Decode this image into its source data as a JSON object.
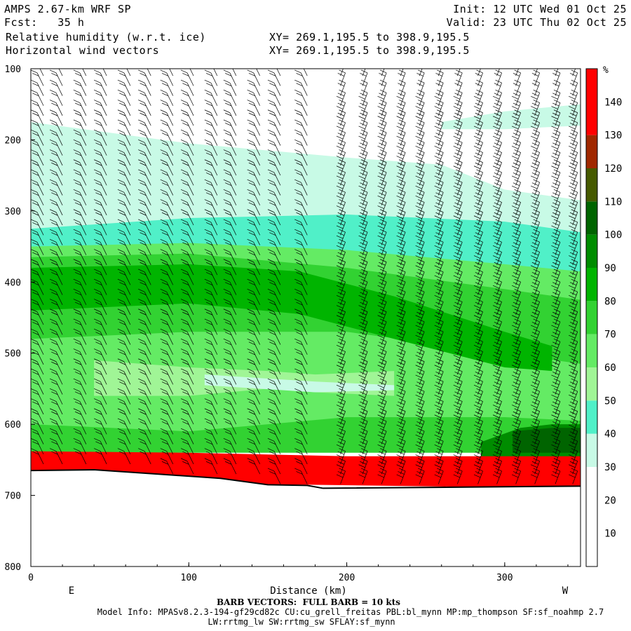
{
  "header": {
    "model": "AMPS 2.67-km WRF SP",
    "forecast": "Fcst:   35 h",
    "field1": "Relative humidity (w.r.t. ice)",
    "field2": "Horizontal wind vectors",
    "init": "Init: 12 UTC Wed 01 Oct 25",
    "valid": "Valid: 23 UTC Thu 02 Oct 25",
    "xy1": "XY= 269.1,195.5 to 398.9,195.5",
    "xy2": "XY= 269.1,195.5 to 398.9,195.5"
  },
  "footer": {
    "barb_note": "BARB VECTORS:  FULL BARB = 10 kts",
    "model_info": "Model Info: MPASv8.2.3-194-gf29cd82c CU:cu_grell_freitas PBL:bl_mynn MP:mp_thompson SF:sf_noahmp 2.7",
    "model_info2": "LW:rrtmg_lw SW:rrtmg_sw SFLAY:sf_mynn"
  },
  "chart_data": {
    "type": "heatmap",
    "title": "Relative humidity (w.r.t. ice)",
    "xlabel": "Distance (km)",
    "ylabel": "",
    "x_ticks": [
      0,
      100,
      200,
      300
    ],
    "y_ticks": [
      100,
      200,
      300,
      400,
      500,
      600,
      700,
      800
    ],
    "xlim": [
      0,
      348
    ],
    "ylim": [
      800,
      100
    ],
    "x_end_labels": {
      "left": "E",
      "right": "W"
    },
    "colorbar": {
      "unit": "%",
      "ticks": [
        10,
        20,
        30,
        40,
        50,
        60,
        70,
        80,
        90,
        100,
        110,
        120,
        130,
        140
      ],
      "bins": [
        {
          "from": 0,
          "to": 30,
          "color": "#ffffff"
        },
        {
          "from": 30,
          "to": 40,
          "color": "#c8fae6"
        },
        {
          "from": 40,
          "to": 50,
          "color": "#50f0c8"
        },
        {
          "from": 50,
          "to": 60,
          "color": "#a0f596"
        },
        {
          "from": 60,
          "to": 70,
          "color": "#64eb64"
        },
        {
          "from": 70,
          "to": 80,
          "color": "#32d232"
        },
        {
          "from": 80,
          "to": 90,
          "color": "#00b400"
        },
        {
          "from": 90,
          "to": 100,
          "color": "#008c00"
        },
        {
          "from": 100,
          "to": 110,
          "color": "#006400"
        },
        {
          "from": 110,
          "to": 120,
          "color": "#465a00"
        },
        {
          "from": 120,
          "to": 130,
          "color": "#a02800"
        },
        {
          "from": 130,
          "to": 150,
          "color": "#ff0000"
        }
      ]
    },
    "terrain_pressure": [
      {
        "x": 0,
        "p": 665
      },
      {
        "x": 40,
        "p": 664
      },
      {
        "x": 80,
        "p": 670
      },
      {
        "x": 120,
        "p": 676
      },
      {
        "x": 150,
        "p": 685
      },
      {
        "x": 175,
        "p": 686
      },
      {
        "x": 185,
        "p": 690
      },
      {
        "x": 348,
        "p": 687
      }
    ],
    "layers": [
      {
        "rh": 35,
        "top": [
          [
            0,
            175
          ],
          [
            100,
            205
          ],
          [
            200,
            225
          ],
          [
            260,
            235
          ],
          [
            300,
            270
          ],
          [
            348,
            285
          ]
        ],
        "bottom": [
          [
            0,
            330
          ],
          [
            100,
            320
          ],
          [
            200,
            320
          ],
          [
            300,
            330
          ],
          [
            348,
            340
          ]
        ]
      },
      {
        "rh": 35,
        "top": [
          [
            260,
            175
          ],
          [
            300,
            160
          ],
          [
            348,
            150
          ]
        ],
        "bottom": [
          [
            260,
            185
          ],
          [
            300,
            185
          ],
          [
            348,
            180
          ]
        ]
      },
      {
        "rh": 45,
        "top": [
          [
            0,
            325
          ],
          [
            100,
            310
          ],
          [
            200,
            305
          ],
          [
            300,
            315
          ],
          [
            348,
            330
          ]
        ],
        "bottom": [
          [
            0,
            355
          ],
          [
            100,
            350
          ],
          [
            200,
            360
          ],
          [
            300,
            380
          ],
          [
            348,
            390
          ]
        ]
      },
      {
        "rh": 65,
        "top": [
          [
            0,
            350
          ],
          [
            100,
            345
          ],
          [
            200,
            355
          ],
          [
            300,
            375
          ],
          [
            348,
            385
          ]
        ],
        "bottom": [
          [
            0,
            620
          ],
          [
            100,
            625
          ],
          [
            200,
            610
          ],
          [
            300,
            600
          ],
          [
            348,
            605
          ]
        ]
      },
      {
        "rh": 75,
        "top": [
          [
            0,
            365
          ],
          [
            100,
            360
          ],
          [
            200,
            380
          ],
          [
            300,
            410
          ],
          [
            348,
            425
          ]
        ],
        "bottom": [
          [
            0,
            480
          ],
          [
            100,
            470
          ],
          [
            200,
            470
          ],
          [
            300,
            500
          ],
          [
            348,
            515
          ]
        ]
      },
      {
        "rh": 85,
        "top": [
          [
            0,
            380
          ],
          [
            100,
            375
          ],
          [
            170,
            385
          ],
          [
            230,
            420
          ],
          [
            300,
            470
          ],
          [
            330,
            490
          ]
        ],
        "bottom": [
          [
            0,
            440
          ],
          [
            100,
            430
          ],
          [
            170,
            445
          ],
          [
            230,
            480
          ],
          [
            300,
            520
          ],
          [
            330,
            525
          ]
        ]
      },
      {
        "rh": 55,
        "top": [
          [
            40,
            510
          ],
          [
            100,
            520
          ],
          [
            150,
            525
          ],
          [
            180,
            530
          ],
          [
            230,
            525
          ]
        ],
        "bottom": [
          [
            40,
            560
          ],
          [
            100,
            560
          ],
          [
            150,
            550
          ],
          [
            180,
            555
          ],
          [
            230,
            560
          ]
        ]
      },
      {
        "rh": 35,
        "top": [
          [
            110,
            530
          ],
          [
            180,
            540
          ],
          [
            230,
            545
          ]
        ],
        "bottom": [
          [
            110,
            545
          ],
          [
            180,
            555
          ],
          [
            230,
            552
          ]
        ]
      },
      {
        "rh": 75,
        "top": [
          [
            0,
            600
          ],
          [
            100,
            610
          ],
          [
            200,
            590
          ],
          [
            300,
            590
          ],
          [
            348,
            595
          ]
        ],
        "bottom": [
          [
            0,
            640
          ],
          [
            100,
            640
          ],
          [
            200,
            640
          ],
          [
            300,
            640
          ],
          [
            348,
            640
          ]
        ]
      },
      {
        "rh": 95,
        "top": [
          [
            285,
            625
          ],
          [
            310,
            605
          ],
          [
            330,
            600
          ],
          [
            348,
            600
          ]
        ],
        "bottom": [
          [
            285,
            650
          ],
          [
            348,
            650
          ]
        ]
      },
      {
        "rh": 105,
        "top": [
          [
            305,
            610
          ],
          [
            330,
            605
          ],
          [
            348,
            605
          ]
        ],
        "bottom": [
          [
            305,
            640
          ],
          [
            348,
            640
          ]
        ]
      },
      {
        "rh": 140,
        "top": [
          [
            0,
            638
          ],
          [
            100,
            640
          ],
          [
            200,
            645
          ],
          [
            300,
            645
          ],
          [
            348,
            645
          ]
        ],
        "bottom": [
          [
            0,
            680
          ],
          [
            348,
            690
          ]
        ]
      }
    ],
    "wind_columns": [
      8,
      20,
      35,
      48,
      63,
      76,
      90,
      103,
      118,
      130,
      145,
      158,
      175,
      196,
      210,
      222,
      234,
      246,
      258,
      270,
      283,
      295,
      307,
      319,
      332,
      343
    ]
  }
}
